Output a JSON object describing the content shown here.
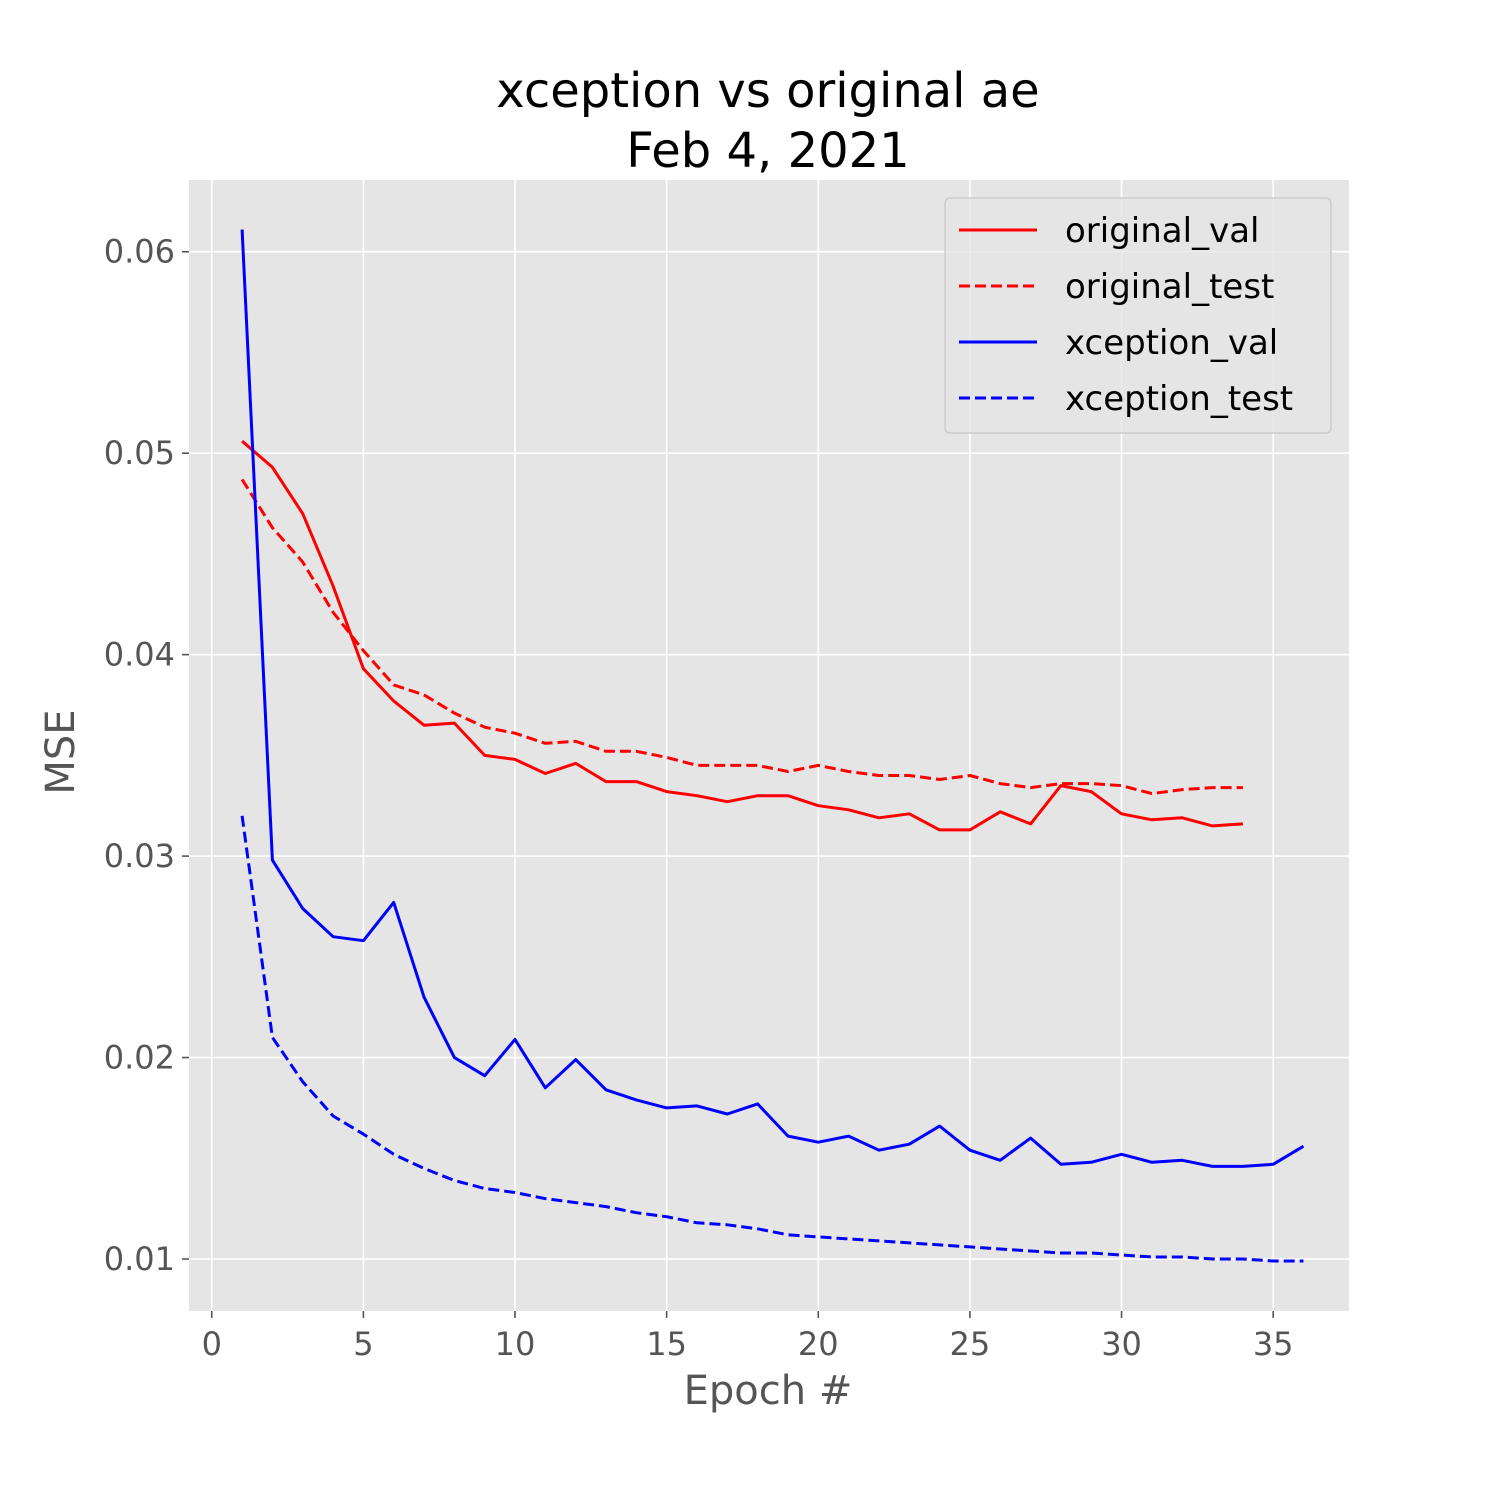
{
  "chart_data": {
    "type": "line",
    "title": "xception vs original ae",
    "subtitle": "Feb 4, 2021",
    "xlabel": "Epoch #",
    "ylabel": "MSE",
    "xlim": [
      -0.75,
      37.5
    ],
    "ylim": [
      0.00742,
      0.06356
    ],
    "x_ticks": [
      0,
      5,
      10,
      15,
      20,
      25,
      30,
      35
    ],
    "x_tick_labels": [
      "0",
      "5",
      "10",
      "15",
      "20",
      "25",
      "30",
      "35"
    ],
    "y_ticks": [
      0.01,
      0.02,
      0.03,
      0.04,
      0.05,
      0.06
    ],
    "y_tick_labels": [
      "0.01",
      "0.02",
      "0.03",
      "0.04",
      "0.05",
      "0.06"
    ],
    "grid": true,
    "legend_position": "top-right",
    "background_color": "#e5e5e5",
    "grid_color": "#ffffff",
    "series": [
      {
        "name": "original_val",
        "color": "#ff0000",
        "style": "solid",
        "x": [
          1,
          2,
          3,
          4,
          5,
          6,
          7,
          8,
          9,
          10,
          11,
          12,
          13,
          14,
          15,
          16,
          17,
          18,
          19,
          20,
          21,
          22,
          23,
          24,
          25,
          26,
          27,
          28,
          29,
          30,
          31,
          32,
          33,
          34
        ],
        "values": [
          0.0506,
          0.0493,
          0.047,
          0.0434,
          0.0393,
          0.0377,
          0.0365,
          0.0366,
          0.035,
          0.0348,
          0.0341,
          0.0346,
          0.0337,
          0.0337,
          0.0332,
          0.033,
          0.0327,
          0.033,
          0.033,
          0.0325,
          0.0323,
          0.0319,
          0.0321,
          0.0313,
          0.0313,
          0.0322,
          0.0316,
          0.0335,
          0.0332,
          0.0321,
          0.0318,
          0.0319,
          0.0315,
          0.0316
        ]
      },
      {
        "name": "original_test",
        "color": "#ff0000",
        "style": "dashed",
        "x": [
          1,
          2,
          3,
          4,
          5,
          6,
          7,
          8,
          9,
          10,
          11,
          12,
          13,
          14,
          15,
          16,
          17,
          18,
          19,
          20,
          21,
          22,
          23,
          24,
          25,
          26,
          27,
          28,
          29,
          30,
          31,
          32,
          33,
          34
        ],
        "values": [
          0.0487,
          0.0463,
          0.0446,
          0.0421,
          0.0402,
          0.0385,
          0.038,
          0.0371,
          0.0364,
          0.0361,
          0.0356,
          0.0357,
          0.0352,
          0.0352,
          0.0349,
          0.0345,
          0.0345,
          0.0345,
          0.0342,
          0.0345,
          0.0342,
          0.034,
          0.034,
          0.0338,
          0.034,
          0.0336,
          0.0334,
          0.0336,
          0.0336,
          0.0335,
          0.0331,
          0.0333,
          0.0334,
          0.0334
        ]
      },
      {
        "name": "xception_val",
        "color": "#0000ff",
        "style": "solid",
        "x": [
          1,
          2,
          3,
          4,
          5,
          6,
          7,
          8,
          9,
          10,
          11,
          12,
          13,
          14,
          15,
          16,
          17,
          18,
          19,
          20,
          21,
          22,
          23,
          24,
          25,
          26,
          27,
          28,
          29,
          30,
          31,
          32,
          33,
          34,
          35,
          36
        ],
        "values": [
          0.0611,
          0.0298,
          0.0274,
          0.026,
          0.0258,
          0.0277,
          0.023,
          0.02,
          0.0191,
          0.0209,
          0.0185,
          0.0199,
          0.0184,
          0.0179,
          0.0175,
          0.0176,
          0.0172,
          0.0177,
          0.0161,
          0.0158,
          0.0161,
          0.0154,
          0.0157,
          0.0166,
          0.0154,
          0.0149,
          0.016,
          0.0147,
          0.0148,
          0.0152,
          0.0148,
          0.0149,
          0.0146,
          0.0146,
          0.0147,
          0.0156
        ]
      },
      {
        "name": "xception_test",
        "color": "#0000ff",
        "style": "dashed",
        "x": [
          1,
          2,
          3,
          4,
          5,
          6,
          7,
          8,
          9,
          10,
          11,
          12,
          13,
          14,
          15,
          16,
          17,
          18,
          19,
          20,
          21,
          22,
          23,
          24,
          25,
          26,
          27,
          28,
          29,
          30,
          31,
          32,
          33,
          34,
          35,
          36
        ],
        "values": [
          0.032,
          0.021,
          0.0188,
          0.0171,
          0.0162,
          0.0152,
          0.0145,
          0.0139,
          0.0135,
          0.0133,
          0.013,
          0.0128,
          0.0126,
          0.0123,
          0.0121,
          0.0118,
          0.0117,
          0.0115,
          0.0112,
          0.0111,
          0.011,
          0.0109,
          0.0108,
          0.0107,
          0.0106,
          0.0105,
          0.0104,
          0.0103,
          0.0103,
          0.0102,
          0.0101,
          0.0101,
          0.01,
          0.01,
          0.0099,
          0.0099
        ]
      }
    ]
  }
}
